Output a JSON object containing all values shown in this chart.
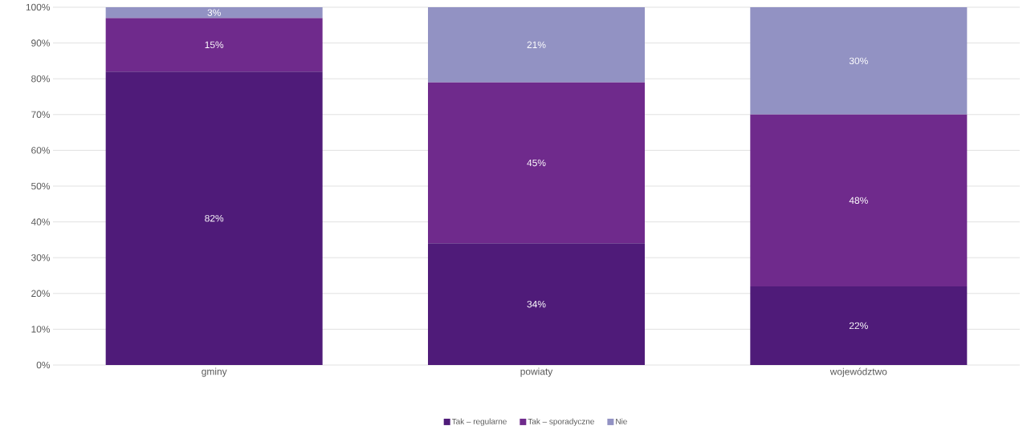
{
  "chart_data": {
    "type": "bar",
    "stacked": true,
    "categories": [
      "gminy",
      "powiaty",
      "województwo"
    ],
    "series": [
      {
        "name": "Tak – regularne",
        "color": "#4f1b79",
        "values": [
          82,
          34,
          22
        ],
        "value_labels": [
          "82%",
          "34%",
          "22%"
        ]
      },
      {
        "name": "Tak – sporadyczne",
        "color": "#6f2a8c",
        "values": [
          15,
          45,
          48
        ],
        "value_labels": [
          "15%",
          "45%",
          "48%"
        ]
      },
      {
        "name": "Nie",
        "color": "#9292c3",
        "values": [
          3,
          21,
          30
        ],
        "value_labels": [
          "3%",
          "21%",
          "30%"
        ]
      }
    ],
    "ylim": [
      0,
      100
    ],
    "yticks": [
      {
        "value": 0,
        "label": "0%"
      },
      {
        "value": 10,
        "label": "10%"
      },
      {
        "value": 20,
        "label": "20%"
      },
      {
        "value": 30,
        "label": "30%"
      },
      {
        "value": 40,
        "label": "40%"
      },
      {
        "value": 50,
        "label": "50%"
      },
      {
        "value": 60,
        "label": "60%"
      },
      {
        "value": 70,
        "label": "70%"
      },
      {
        "value": 80,
        "label": "80%"
      },
      {
        "value": 90,
        "label": "90%"
      },
      {
        "value": 100,
        "label": "100%"
      }
    ],
    "grid": "y",
    "legend": "bottom"
  }
}
